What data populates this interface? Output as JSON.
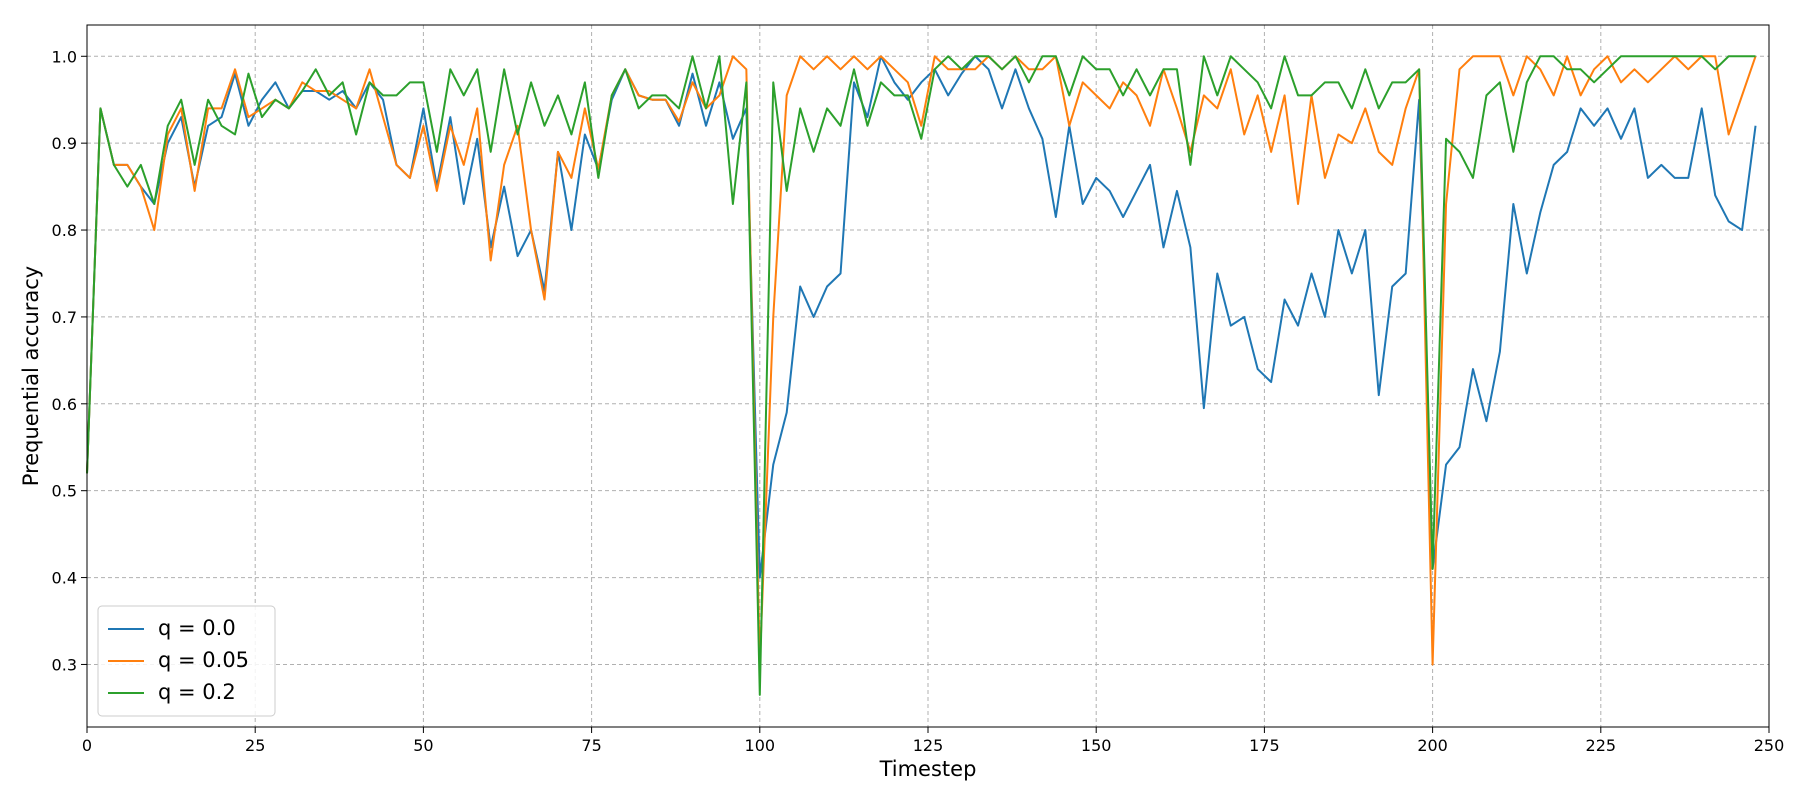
{
  "chart_data": {
    "type": "line",
    "xlabel": "Timestep",
    "ylabel": "Prequential accuracy",
    "xlim": [
      0,
      250
    ],
    "ylim": [
      0.228,
      1.036
    ],
    "xticks": [
      0,
      25,
      50,
      75,
      100,
      125,
      150,
      175,
      200,
      225,
      250
    ],
    "yticks": [
      0.3,
      0.4,
      0.5,
      0.6,
      0.7,
      0.8,
      0.9,
      {
        "value": 1,
        "label": "1.0"
      }
    ],
    "grid": true,
    "legend": "lower left",
    "x": [
      0,
      2,
      4,
      6,
      8,
      10,
      12,
      14,
      16,
      18,
      20,
      22,
      24,
      26,
      28,
      30,
      32,
      34,
      36,
      38,
      40,
      42,
      44,
      46,
      48,
      50,
      52,
      54,
      56,
      58,
      60,
      62,
      64,
      66,
      68,
      70,
      72,
      74,
      76,
      78,
      80,
      82,
      84,
      86,
      88,
      90,
      92,
      94,
      96,
      98,
      100,
      102,
      104,
      106,
      108,
      110,
      112,
      114,
      116,
      118,
      120,
      122,
      124,
      126,
      128,
      130,
      132,
      134,
      136,
      138,
      140,
      142,
      144,
      146,
      148,
      150,
      152,
      154,
      156,
      158,
      160,
      162,
      164,
      166,
      168,
      170,
      172,
      174,
      176,
      178,
      180,
      182,
      184,
      186,
      188,
      190,
      192,
      194,
      196,
      198,
      200,
      202,
      204,
      206,
      208,
      210,
      212,
      214,
      216,
      218,
      220,
      222,
      224,
      226,
      228,
      230,
      232,
      234,
      236,
      238,
      240,
      242,
      244,
      246,
      248
    ],
    "series": [
      {
        "name": "q = 0.0",
        "color": "#1f77b4",
        "values": [
          0.52,
          0.94,
          0.875,
          0.875,
          0.85,
          0.83,
          0.9,
          0.93,
          0.85,
          0.92,
          0.93,
          0.98,
          0.92,
          0.95,
          0.97,
          0.94,
          0.96,
          0.96,
          0.95,
          0.96,
          0.94,
          0.97,
          0.95,
          0.875,
          0.86,
          0.94,
          0.85,
          0.93,
          0.83,
          0.905,
          0.78,
          0.85,
          0.77,
          0.8,
          0.73,
          0.89,
          0.8,
          0.91,
          0.87,
          0.95,
          0.985,
          0.955,
          0.95,
          0.95,
          0.92,
          0.98,
          0.92,
          0.97,
          0.905,
          0.94,
          0.4,
          0.53,
          0.59,
          0.735,
          0.7,
          0.735,
          0.75,
          0.97,
          0.93,
          1.0,
          0.97,
          0.95,
          0.97,
          0.985,
          0.955,
          0.98,
          1.0,
          0.985,
          0.94,
          0.985,
          0.94,
          0.905,
          0.815,
          0.92,
          0.83,
          0.86,
          0.845,
          0.815,
          0.845,
          0.875,
          0.78,
          0.845,
          0.78,
          0.595,
          0.75,
          0.69,
          0.7,
          0.64,
          0.625,
          0.72,
          0.69,
          0.75,
          0.7,
          0.8,
          0.75,
          0.8,
          0.61,
          0.735,
          0.75,
          0.95,
          0.41,
          0.53,
          0.55,
          0.64,
          0.58,
          0.66,
          0.83,
          0.75,
          0.82,
          0.875,
          0.89,
          0.94,
          0.92,
          0.94,
          0.905,
          0.94,
          0.86,
          0.875,
          0.86,
          0.86,
          0.94,
          0.84,
          0.81,
          0.8,
          0.92
        ]
      },
      {
        "name": "q = 0.05",
        "color": "#ff7f0e",
        "values": [
          0.52,
          0.94,
          0.875,
          0.875,
          0.85,
          0.8,
          0.91,
          0.94,
          0.845,
          0.94,
          0.94,
          0.985,
          0.93,
          0.94,
          0.95,
          0.94,
          0.97,
          0.96,
          0.96,
          0.95,
          0.94,
          0.985,
          0.93,
          0.875,
          0.86,
          0.92,
          0.845,
          0.92,
          0.875,
          0.94,
          0.765,
          0.875,
          0.92,
          0.8,
          0.72,
          0.89,
          0.86,
          0.94,
          0.87,
          0.955,
          0.985,
          0.955,
          0.95,
          0.95,
          0.925,
          0.97,
          0.94,
          0.955,
          1.0,
          0.985,
          0.3,
          0.7,
          0.955,
          1.0,
          0.985,
          1.0,
          0.985,
          1.0,
          0.985,
          1.0,
          0.985,
          0.97,
          0.92,
          1.0,
          0.985,
          0.985,
          0.985,
          1.0,
          0.985,
          1.0,
          0.985,
          0.985,
          1.0,
          0.92,
          0.97,
          0.955,
          0.94,
          0.97,
          0.955,
          0.92,
          0.985,
          0.94,
          0.89,
          0.955,
          0.94,
          0.985,
          0.91,
          0.955,
          0.89,
          0.955,
          0.83,
          0.955,
          0.86,
          0.91,
          0.9,
          0.94,
          0.89,
          0.875,
          0.94,
          0.985,
          0.3,
          0.83,
          0.985,
          1.0,
          1.0,
          1.0,
          0.955,
          1.0,
          0.985,
          0.955,
          1.0,
          0.955,
          0.985,
          1.0,
          0.97,
          0.985,
          0.97,
          0.985,
          1.0,
          0.985,
          1.0,
          1.0,
          0.91,
          0.955,
          1.0
        ]
      },
      {
        "name": "q = 0.2",
        "color": "#2ca02c",
        "values": [
          0.52,
          0.94,
          0.875,
          0.85,
          0.875,
          0.83,
          0.92,
          0.95,
          0.875,
          0.95,
          0.92,
          0.91,
          0.98,
          0.93,
          0.95,
          0.94,
          0.96,
          0.985,
          0.955,
          0.97,
          0.91,
          0.97,
          0.955,
          0.955,
          0.97,
          0.97,
          0.89,
          0.985,
          0.955,
          0.985,
          0.89,
          0.985,
          0.91,
          0.97,
          0.92,
          0.955,
          0.91,
          0.97,
          0.86,
          0.955,
          0.985,
          0.94,
          0.955,
          0.955,
          0.94,
          1.0,
          0.94,
          1.0,
          0.83,
          0.97,
          0.265,
          0.97,
          0.845,
          0.94,
          0.89,
          0.94,
          0.92,
          0.985,
          0.92,
          0.97,
          0.955,
          0.955,
          0.905,
          0.985,
          1.0,
          0.985,
          1.0,
          1.0,
          0.985,
          1.0,
          0.97,
          1.0,
          1.0,
          0.955,
          1.0,
          0.985,
          0.985,
          0.955,
          0.985,
          0.955,
          0.985,
          0.985,
          0.875,
          1.0,
          0.955,
          1.0,
          0.985,
          0.97,
          0.94,
          1.0,
          0.955,
          0.955,
          0.97,
          0.97,
          0.94,
          0.985,
          0.94,
          0.97,
          0.97,
          0.985,
          0.41,
          0.905,
          0.89,
          0.86,
          0.955,
          0.97,
          0.89,
          0.97,
          1.0,
          1.0,
          0.985,
          0.985,
          0.97,
          0.985,
          1.0,
          1.0,
          1.0,
          1.0,
          1.0,
          1.0,
          1.0,
          0.985,
          1.0,
          1.0,
          1.0
        ]
      }
    ]
  }
}
